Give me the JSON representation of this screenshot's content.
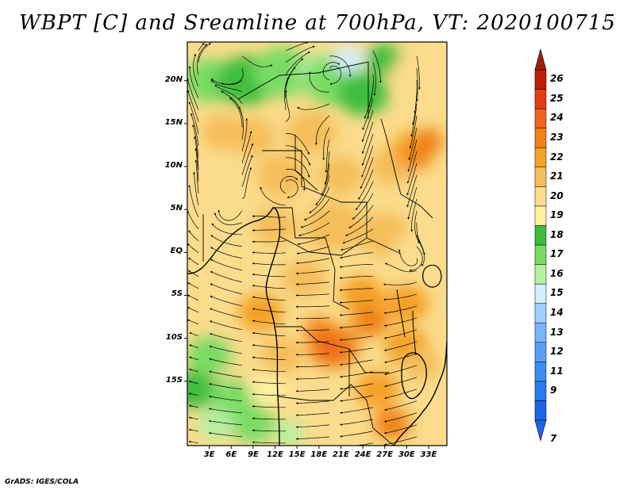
{
  "title": "WBPT [C] and Sreamline at 700hPa, VT: 2020100715",
  "credit": "GrADS: IGES/COLA",
  "map": {
    "variable": "WBPT",
    "units": "C",
    "level": "700hPa",
    "valid_time": "2020100715",
    "lon_range_deg_east": [
      0,
      35.5
    ],
    "lat_range_deg": [
      -22.5,
      24.5
    ]
  },
  "axes": {
    "x_ticks": [
      {
        "value": 3,
        "label": "3E"
      },
      {
        "value": 6,
        "label": "6E"
      },
      {
        "value": 9,
        "label": "9E"
      },
      {
        "value": 12,
        "label": "12E"
      },
      {
        "value": 15,
        "label": "15E"
      },
      {
        "value": 18,
        "label": "18E"
      },
      {
        "value": 21,
        "label": "21E"
      },
      {
        "value": 24,
        "label": "24E"
      },
      {
        "value": 27,
        "label": "27E"
      },
      {
        "value": 30,
        "label": "30E"
      },
      {
        "value": 33,
        "label": "33E"
      }
    ],
    "y_ticks": [
      {
        "value": 20,
        "label": "20N"
      },
      {
        "value": 15,
        "label": "15N"
      },
      {
        "value": 10,
        "label": "10N"
      },
      {
        "value": 5,
        "label": "5N"
      },
      {
        "value": 0,
        "label": "EQ"
      },
      {
        "value": -5,
        "label": "5S"
      },
      {
        "value": -10,
        "label": "10S"
      },
      {
        "value": -15,
        "label": "15S"
      }
    ]
  },
  "colorbar": {
    "levels": [
      {
        "label": "7",
        "color": "#1e64e6"
      },
      {
        "label": "9",
        "color": "#2878f0"
      },
      {
        "label": "11",
        "color": "#3c8cf5"
      },
      {
        "label": "12",
        "color": "#5aa0f8"
      },
      {
        "label": "13",
        "color": "#78b4fa"
      },
      {
        "label": "14",
        "color": "#a0cdfc"
      },
      {
        "label": "15",
        "color": "#d2eefc"
      },
      {
        "label": "16",
        "color": "#b4f0a0"
      },
      {
        "label": "17",
        "color": "#78dc64"
      },
      {
        "label": "18",
        "color": "#3cbe3c"
      },
      {
        "label": "19",
        "color": "#fff0a0"
      },
      {
        "label": "20",
        "color": "#fadc8c"
      },
      {
        "label": "21",
        "color": "#f5be5a"
      },
      {
        "label": "22",
        "color": "#f5a028"
      },
      {
        "label": "23",
        "color": "#f08214"
      },
      {
        "label": "24",
        "color": "#f0641e"
      },
      {
        "label": "25",
        "color": "#e63c14"
      },
      {
        "label": "26",
        "color": "#be1e0a"
      }
    ],
    "top_arrow_color": "#a01e0a",
    "bottom_arrow_color": "#1e64e6"
  },
  "fields": [
    {
      "lon": 3,
      "lat": 20,
      "level": 17,
      "r": 3.5
    },
    {
      "lon": 8,
      "lat": 20,
      "level": 18,
      "r": 4
    },
    {
      "lon": 13,
      "lat": 21,
      "level": 17,
      "r": 4
    },
    {
      "lon": 18,
      "lat": 21,
      "level": 16,
      "r": 3
    },
    {
      "lon": 20,
      "lat": 20,
      "level": 17,
      "r": 4
    },
    {
      "lon": 24,
      "lat": 18.5,
      "level": 18,
      "r": 3.5
    },
    {
      "lon": 22,
      "lat": 22.5,
      "level": 15,
      "r": 2.2
    },
    {
      "lon": 27,
      "lat": 22.5,
      "level": 18,
      "r": 2.5
    },
    {
      "lon": 31,
      "lat": 21,
      "level": 20,
      "r": 3
    },
    {
      "lon": 5,
      "lat": 14,
      "level": 21,
      "r": 3
    },
    {
      "lon": 9,
      "lat": 13.5,
      "level": 21,
      "r": 3
    },
    {
      "lon": 17,
      "lat": 14,
      "level": 21,
      "r": 3.5
    },
    {
      "lon": 13,
      "lat": 9,
      "level": 21,
      "r": 3.5
    },
    {
      "lon": 21,
      "lat": 9,
      "level": 21,
      "r": 3
    },
    {
      "lon": 28,
      "lat": 10,
      "level": 21,
      "r": 3
    },
    {
      "lon": 31,
      "lat": 12,
      "level": 22,
      "r": 3
    },
    {
      "lon": 33,
      "lat": 13,
      "level": 23,
      "r": 2
    },
    {
      "lon": 31.5,
      "lat": 11,
      "level": 23,
      "r": 1.8
    },
    {
      "lon": 3,
      "lat": 5,
      "level": 20,
      "r": 3
    },
    {
      "lon": 6,
      "lat": -1,
      "level": 20,
      "r": 3.5
    },
    {
      "lon": 12,
      "lat": 3,
      "level": 21,
      "r": 3
    },
    {
      "lon": 20,
      "lat": 3,
      "level": 21,
      "r": 4
    },
    {
      "lon": 27,
      "lat": 2,
      "level": 21,
      "r": 3.5
    },
    {
      "lon": 31,
      "lat": 0,
      "level": 20,
      "r": 3
    },
    {
      "lon": 16,
      "lat": -3,
      "level": 21,
      "r": 3
    },
    {
      "lon": 24,
      "lat": -5,
      "level": 22,
      "r": 3
    },
    {
      "lon": 30,
      "lat": -6,
      "level": 22,
      "r": 3
    },
    {
      "lon": 10,
      "lat": -7,
      "level": 22,
      "r": 3
    },
    {
      "lon": 13,
      "lat": -12,
      "level": 21,
      "r": 3
    },
    {
      "lon": 20,
      "lat": -11,
      "level": 23,
      "r": 3.5
    },
    {
      "lon": 18,
      "lat": -9,
      "level": 23,
      "r": 2
    },
    {
      "lon": 19.5,
      "lat": -11,
      "level": 24,
      "r": 1.8
    },
    {
      "lon": 25,
      "lat": -8,
      "level": 23,
      "r": 2.5
    },
    {
      "lon": 30,
      "lat": -11,
      "level": 22,
      "r": 3
    },
    {
      "lon": 32,
      "lat": -13,
      "level": 21,
      "r": 2.5
    },
    {
      "lon": 26,
      "lat": -16,
      "level": 22,
      "r": 3
    },
    {
      "lon": 28,
      "lat": -20,
      "level": 23,
      "r": 2.5
    },
    {
      "lon": 3,
      "lat": -12,
      "level": 17,
      "r": 3
    },
    {
      "lon": 1,
      "lat": -16,
      "level": 18,
      "r": 3
    },
    {
      "lon": 6,
      "lat": -17,
      "level": 17,
      "r": 3
    },
    {
      "lon": 9,
      "lat": -20,
      "level": 17,
      "r": 3
    },
    {
      "lon": 14,
      "lat": -21,
      "level": 16,
      "r": 2
    },
    {
      "lon": 4,
      "lat": -20,
      "level": 16,
      "r": 2.5
    },
    {
      "lon": 11,
      "lat": -16,
      "level": 19,
      "r": 2.5
    }
  ],
  "streamlines": {
    "background_flow": "easterly"
  }
}
